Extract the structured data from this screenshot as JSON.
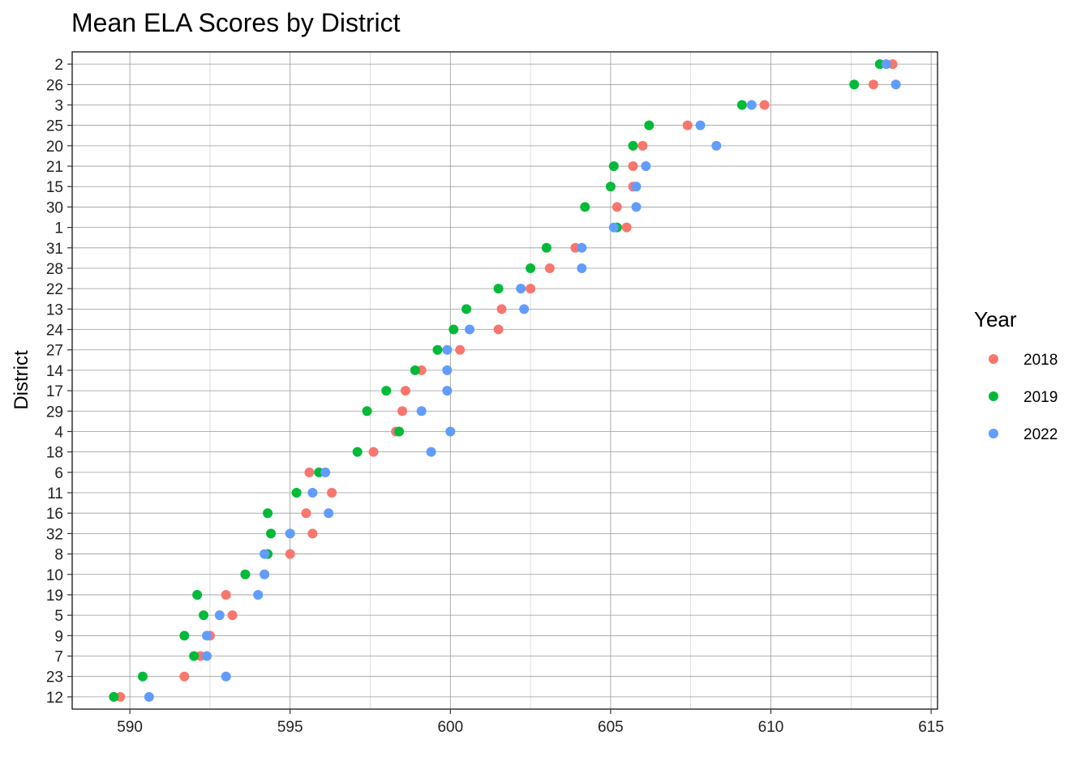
{
  "chart_data": {
    "type": "scatter",
    "title": "Mean ELA Scores by District",
    "xlabel": "",
    "ylabel": "District",
    "xlim": [
      588.2,
      615.2
    ],
    "x_ticks": [
      590,
      595,
      600,
      605,
      610,
      615
    ],
    "x_tick_labels": [
      "590",
      "595",
      "600",
      "605",
      "610",
      "615"
    ],
    "grid": true,
    "legend": {
      "title": "Year",
      "placement": "right"
    },
    "categories": [
      "2",
      "26",
      "3",
      "25",
      "20",
      "21",
      "15",
      "30",
      "1",
      "31",
      "28",
      "22",
      "13",
      "24",
      "27",
      "14",
      "17",
      "29",
      "4",
      "18",
      "6",
      "11",
      "16",
      "32",
      "8",
      "10",
      "19",
      "5",
      "9",
      "7",
      "23",
      "12"
    ],
    "series": [
      {
        "name": "2018",
        "color": "#F8766D",
        "values": [
          613.8,
          613.2,
          609.8,
          607.4,
          606.0,
          605.7,
          605.7,
          605.2,
          605.5,
          603.9,
          603.1,
          602.5,
          601.6,
          601.5,
          600.3,
          599.1,
          598.6,
          598.5,
          598.3,
          597.6,
          595.6,
          596.3,
          595.5,
          595.7,
          595.0,
          594.2,
          593.0,
          593.2,
          592.5,
          592.2,
          591.7,
          589.7
        ]
      },
      {
        "name": "2019",
        "color": "#00BA38",
        "values": [
          613.4,
          612.6,
          609.1,
          606.2,
          605.7,
          605.1,
          605.0,
          604.2,
          605.2,
          603.0,
          602.5,
          601.5,
          600.5,
          600.1,
          599.6,
          598.9,
          598.0,
          597.4,
          598.4,
          597.1,
          595.9,
          595.2,
          594.3,
          594.4,
          594.3,
          593.6,
          592.1,
          592.3,
          591.7,
          592.0,
          590.4,
          589.5
        ]
      },
      {
        "name": "2022",
        "color": "#619CFF",
        "values": [
          613.6,
          613.9,
          609.4,
          607.8,
          608.3,
          606.1,
          605.8,
          605.8,
          605.1,
          604.1,
          604.1,
          602.2,
          602.3,
          600.6,
          599.9,
          599.9,
          599.9,
          599.1,
          600.0,
          599.4,
          596.1,
          595.7,
          596.2,
          595.0,
          594.2,
          594.2,
          594.0,
          592.8,
          592.4,
          592.4,
          593.0,
          590.6
        ]
      }
    ]
  }
}
